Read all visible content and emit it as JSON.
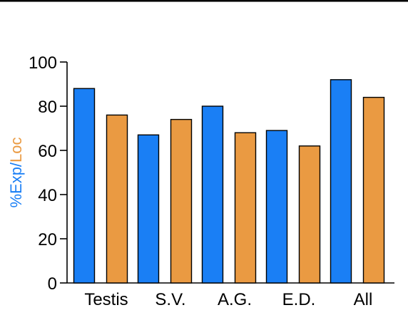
{
  "chart_data": {
    "type": "bar",
    "categories": [
      "Testis",
      "S.V.",
      "A.G.",
      "E.D.",
      "All"
    ],
    "series": [
      {
        "values": [
          88,
          67,
          80,
          69,
          92
        ]
      },
      {
        "values": [
          76,
          74,
          68,
          62,
          84
        ]
      }
    ],
    "ylabel": {
      "prefix": "%",
      "part1": "Exp",
      "separator": "/",
      "part2": "Loc"
    },
    "ylim": [
      0,
      100
    ],
    "yticks": [
      0,
      20,
      40,
      60,
      80,
      100
    ],
    "colors": {
      "series1": "#1a7ff5",
      "series2": "#ea9a42",
      "prefix": "#1a7ff5",
      "part1": "#1a7ff5",
      "separator": "#1a7ff5",
      "part2": "#ea9a42",
      "frame": "#000000"
    },
    "grid": false,
    "legend": "none"
  }
}
